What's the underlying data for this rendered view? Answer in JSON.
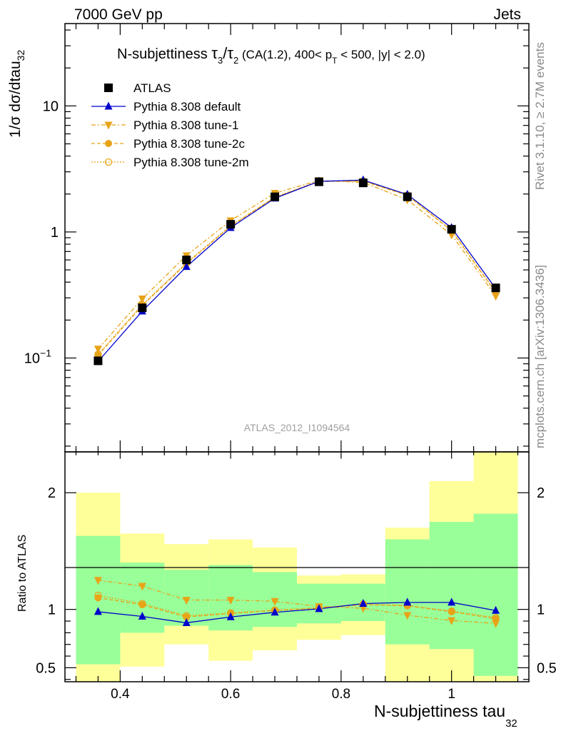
{
  "header": {
    "energy": "7000 GeV pp",
    "category": "Jets"
  },
  "side_text": {
    "rivet": "Rivet 3.1.10, ≥ 2.7M events",
    "source": "mcplots.cern.ch [arXiv:1306.3436]"
  },
  "watermark": "ATLAS_2012_I1094564",
  "colors": {
    "atlas": "#000000",
    "default": "#0000cc",
    "tune": "#e8a317",
    "band_green": "#99ff99",
    "band_yellow": "#ffff99"
  },
  "chart_data": {
    "type": "line",
    "title": "N-subjettiness τ₃/τ₂ (CA(1.2), 400< p_T < 500, |y| < 2.0)",
    "title_parts": {
      "main": "N-subjettiness ",
      "tau": "τ",
      "sub3": "3",
      "slash": "/",
      "sub2": "2",
      "cond_a": " (CA(1.2), 400< p",
      "subT": "T",
      "cond_b": " < 500, |y| < 2.0)"
    },
    "xlabel": "N-subjettiness tau",
    "xlabel_sub": "32",
    "ylabel": "1/σ dσ/dtau",
    "ylabel_sub": "32",
    "ratio_ylabel": "Ratio to ATLAS",
    "xlim": [
      0.3,
      1.14
    ],
    "ylim_main": [
      0.018,
      45
    ],
    "ylim_ratio": [
      0.38,
      2.35
    ],
    "log_y": true,
    "x_ticks": [
      "0.4",
      "0.6",
      "0.8",
      "1"
    ],
    "y_ticks_main": [
      "10^-1",
      "1",
      "10"
    ],
    "y_ticks_ratio": [
      "0.5",
      "1",
      "2"
    ],
    "bin_edges": [
      0.32,
      0.4,
      0.48,
      0.56,
      0.64,
      0.72,
      0.8,
      0.88,
      0.96,
      1.04,
      1.12
    ],
    "x": [
      0.36,
      0.44,
      0.52,
      0.6,
      0.68,
      0.76,
      0.84,
      0.92,
      1.0,
      1.08
    ],
    "legend_position": "top-left",
    "series": [
      {
        "key": "atlas",
        "name": "ATLAS",
        "values": [
          0.095,
          0.25,
          0.6,
          1.15,
          1.9,
          2.5,
          2.45,
          1.9,
          1.05,
          0.36
        ]
      },
      {
        "key": "default",
        "name": "Pythia 8.308 default",
        "values": [
          0.094,
          0.235,
          0.53,
          1.08,
          1.85,
          2.52,
          2.58,
          1.98,
          1.08,
          0.355
        ],
        "ratio": [
          0.98,
          0.94,
          0.885,
          0.935,
          0.975,
          1.005,
          1.05,
          1.06,
          1.06,
          0.99
        ]
      },
      {
        "key": "tune1",
        "name": "Pythia 8.308 tune-1",
        "values": [
          0.118,
          0.295,
          0.65,
          1.23,
          2.03,
          2.56,
          2.47,
          1.8,
          0.95,
          0.31
        ],
        "ratio": [
          1.25,
          1.2,
          1.08,
          1.08,
          1.07,
          1.025,
          1.01,
          0.95,
          0.905,
          0.88
        ]
      },
      {
        "key": "tune2c",
        "name": "Pythia 8.308 tune-2c",
        "values": [
          0.105,
          0.26,
          0.56,
          1.11,
          1.88,
          2.52,
          2.53,
          1.95,
          1.02,
          0.33
        ],
        "ratio": [
          1.1,
          1.04,
          0.935,
          0.965,
          0.99,
          1.01,
          1.04,
          1.03,
          0.98,
          0.92
        ]
      },
      {
        "key": "tune2m",
        "name": "Pythia 8.308 tune-2m",
        "values": [
          0.107,
          0.265,
          0.57,
          1.12,
          1.89,
          2.53,
          2.54,
          1.96,
          1.03,
          0.335
        ],
        "ratio": [
          1.12,
          1.05,
          0.945,
          0.97,
          0.995,
          1.015,
          1.045,
          1.035,
          0.985,
          0.93
        ]
      }
    ],
    "uncertainty_bands": {
      "green": [
        [
          0.53,
          1.63
        ],
        [
          0.8,
          1.4
        ],
        [
          0.86,
          1.34
        ],
        [
          0.82,
          1.38
        ],
        [
          0.85,
          1.32
        ],
        [
          0.88,
          1.22
        ],
        [
          0.9,
          1.22
        ],
        [
          0.7,
          1.6
        ],
        [
          0.66,
          1.75
        ],
        [
          0.43,
          1.82
        ]
      ],
      "yellow": [
        [
          0.38,
          2.0
        ],
        [
          0.51,
          1.65
        ],
        [
          0.7,
          1.56
        ],
        [
          0.56,
          1.6
        ],
        [
          0.65,
          1.53
        ],
        [
          0.74,
          1.29
        ],
        [
          0.78,
          1.3
        ],
        [
          0.38,
          1.7
        ],
        [
          0.38,
          2.1
        ],
        [
          0.38,
          2.35
        ]
      ]
    }
  }
}
